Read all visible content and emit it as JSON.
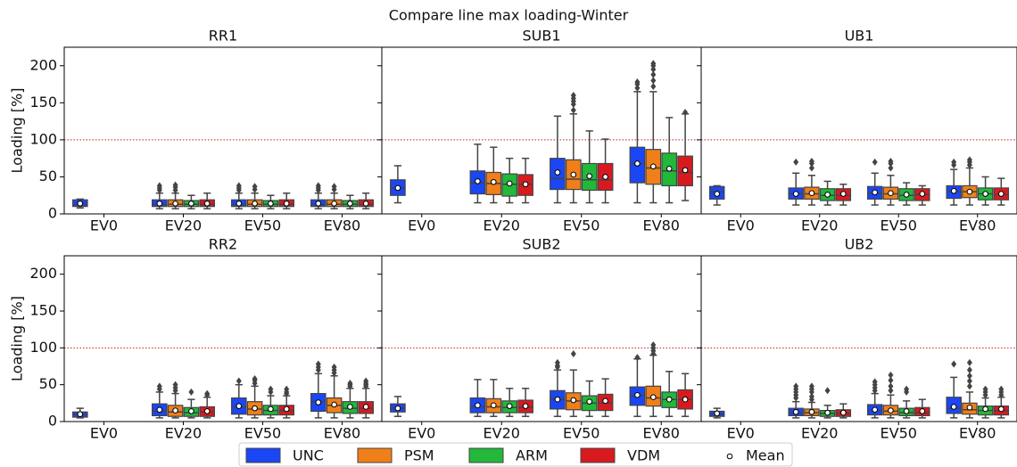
{
  "title": "Compare line max loading-Winter",
  "series": [
    {
      "name": "UNC",
      "color": "#1a46f5"
    },
    {
      "name": "PSM",
      "color": "#f07f1a"
    },
    {
      "name": "ARM",
      "color": "#22b83a"
    },
    {
      "name": "VDM",
      "color": "#d81a1f"
    }
  ],
  "mean_label": "Mean",
  "chart_data": [
    {
      "type": "box",
      "title": "RR1",
      "ylabel": "Loading [%]",
      "categories": [
        "EV0",
        "EV20",
        "EV50",
        "EV80"
      ],
      "ylim": [
        0,
        225
      ],
      "yticks": [
        0,
        50,
        100,
        150,
        200
      ],
      "hline": 100,
      "boxes": [
        [
          {
            "lo": 8,
            "q1": 10,
            "med": 13,
            "q3": 19,
            "hi": 20,
            "mean": 14
          },
          {
            "lo": 7,
            "q1": 10,
            "med": 13,
            "q3": 19,
            "hi": 28,
            "mean": 14,
            "out": [
              32,
              35,
              38
            ]
          },
          {
            "lo": 7,
            "q1": 10,
            "med": 13,
            "q3": 19,
            "hi": 28,
            "mean": 14,
            "out": [
              32,
              35,
              38
            ]
          },
          {
            "lo": 7,
            "q1": 10,
            "med": 13,
            "q3": 19,
            "hi": 28,
            "mean": 14,
            "out": [
              32,
              35,
              38
            ]
          }
        ],
        [
          null,
          {
            "lo": 7,
            "q1": 10,
            "med": 13,
            "q3": 19,
            "hi": 28,
            "mean": 14,
            "out": [
              32,
              36,
              39
            ]
          },
          {
            "lo": 7,
            "q1": 10,
            "med": 13,
            "q3": 19,
            "hi": 28,
            "mean": 14,
            "out": [
              33,
              37
            ]
          },
          {
            "lo": 7,
            "q1": 10,
            "med": 13,
            "q3": 19,
            "hi": 28,
            "mean": 14,
            "out": [
              33,
              37
            ]
          }
        ],
        [
          null,
          {
            "lo": 7,
            "q1": 10,
            "med": 13,
            "q3": 18,
            "hi": 25,
            "mean": 14
          },
          {
            "lo": 7,
            "q1": 10,
            "med": 13,
            "q3": 18,
            "hi": 25,
            "mean": 14
          },
          {
            "lo": 7,
            "q1": 10,
            "med": 13,
            "q3": 18,
            "hi": 25,
            "mean": 14
          }
        ],
        [
          null,
          {
            "lo": 7,
            "q1": 10,
            "med": 13,
            "q3": 19,
            "hi": 28,
            "mean": 14
          },
          {
            "lo": 7,
            "q1": 10,
            "med": 13,
            "q3": 19,
            "hi": 28,
            "mean": 14
          },
          {
            "lo": 7,
            "q1": 10,
            "med": 13,
            "q3": 19,
            "hi": 28,
            "mean": 14
          }
        ]
      ]
    },
    {
      "type": "box",
      "title": "SUB1",
      "categories": [
        "EV0",
        "EV20",
        "EV50",
        "EV80"
      ],
      "ylim": [
        0,
        225
      ],
      "yticks": [
        0,
        50,
        100,
        150,
        200
      ],
      "hline": 100,
      "boxes": [
        [
          {
            "lo": 15,
            "q1": 25,
            "med": 35,
            "q3": 46,
            "hi": 65,
            "mean": 35
          },
          {
            "lo": 15,
            "q1": 27,
            "med": 42,
            "q3": 58,
            "hi": 94,
            "mean": 44
          },
          {
            "lo": 15,
            "q1": 33,
            "med": 48,
            "q3": 75,
            "hi": 132,
            "mean": 56
          },
          {
            "lo": 15,
            "q1": 42,
            "med": 68,
            "q3": 90,
            "hi": 165,
            "mean": 68,
            "out": [
              170,
              175,
              178
            ]
          }
        ],
        [
          null,
          {
            "lo": 15,
            "q1": 26,
            "med": 41,
            "q3": 56,
            "hi": 90,
            "mean": 43
          },
          {
            "lo": 15,
            "q1": 33,
            "med": 47,
            "q3": 73,
            "hi": 135,
            "mean": 53,
            "out": [
              140,
              148,
              152,
              156,
              160
            ]
          },
          {
            "lo": 15,
            "q1": 40,
            "med": 62,
            "q3": 87,
            "hi": 165,
            "mean": 64,
            "out": [
              172,
              180,
              188,
              195,
              200,
              203
            ]
          }
        ],
        [
          null,
          {
            "lo": 15,
            "q1": 24,
            "med": 40,
            "q3": 54,
            "hi": 75,
            "mean": 41
          },
          {
            "lo": 15,
            "q1": 32,
            "med": 46,
            "q3": 68,
            "hi": 112,
            "mean": 51
          },
          {
            "lo": 15,
            "q1": 38,
            "med": 58,
            "q3": 82,
            "hi": 130,
            "mean": 61
          }
        ],
        [
          null,
          {
            "lo": 15,
            "q1": 25,
            "med": 40,
            "q3": 53,
            "hi": 75,
            "mean": 40
          },
          {
            "lo": 15,
            "q1": 32,
            "med": 46,
            "q3": 68,
            "hi": 101,
            "mean": 50
          },
          {
            "lo": 18,
            "q1": 38,
            "med": 56,
            "q3": 78,
            "hi": 135,
            "mean": 59,
            "out": [
              137
            ]
          }
        ]
      ]
    },
    {
      "type": "box",
      "title": "UB1",
      "categories": [
        "EV0",
        "EV20",
        "EV50",
        "EV80"
      ],
      "ylim": [
        0,
        225
      ],
      "yticks": [
        0,
        50,
        100,
        150,
        200
      ],
      "hline": 100,
      "boxes": [
        [
          {
            "lo": 12,
            "q1": 20,
            "med": 30,
            "q3": 37,
            "hi": 38,
            "mean": 27
          },
          {
            "lo": 12,
            "q1": 20,
            "med": 27,
            "q3": 35,
            "hi": 55,
            "mean": 27,
            "out": [
              70
            ]
          },
          {
            "lo": 12,
            "q1": 20,
            "med": 28,
            "q3": 37,
            "hi": 55,
            "mean": 29,
            "out": [
              70
            ]
          },
          {
            "lo": 12,
            "q1": 21,
            "med": 30,
            "q3": 38,
            "hi": 60,
            "mean": 31,
            "out": [
              66,
              70
            ]
          }
        ],
        [
          null,
          {
            "lo": 12,
            "q1": 20,
            "med": 27,
            "q3": 36,
            "hi": 52,
            "mean": 28,
            "out": [
              62,
              68,
              71
            ]
          },
          {
            "lo": 12,
            "q1": 20,
            "med": 27,
            "q3": 36,
            "hi": 52,
            "mean": 28,
            "out": [
              62,
              68,
              71
            ]
          },
          {
            "lo": 12,
            "q1": 22,
            "med": 30,
            "q3": 38,
            "hi": 62,
            "mean": 30,
            "out": [
              66,
              70,
              73
            ]
          }
        ],
        [
          null,
          {
            "lo": 12,
            "q1": 18,
            "med": 25,
            "q3": 34,
            "hi": 44,
            "mean": 26
          },
          {
            "lo": 12,
            "q1": 18,
            "med": 25,
            "q3": 34,
            "hi": 42,
            "mean": 26
          },
          {
            "lo": 12,
            "q1": 19,
            "med": 27,
            "q3": 35,
            "hi": 50,
            "mean": 27
          }
        ],
        [
          null,
          {
            "lo": 12,
            "q1": 18,
            "med": 25,
            "q3": 34,
            "hi": 40,
            "mean": 27
          },
          {
            "lo": 12,
            "q1": 18,
            "med": 26,
            "q3": 34,
            "hi": 38,
            "mean": 27
          },
          {
            "lo": 12,
            "q1": 19,
            "med": 26,
            "q3": 35,
            "hi": 48,
            "mean": 27
          }
        ]
      ]
    },
    {
      "type": "box",
      "title": "RR2",
      "ylabel": "Loading [%]",
      "categories": [
        "EV0",
        "EV20",
        "EV50",
        "EV80"
      ],
      "ylim": [
        0,
        225
      ],
      "yticks": [
        0,
        50,
        100,
        150,
        200
      ],
      "hline": 100,
      "boxes": [
        [
          {
            "lo": 5,
            "q1": 6,
            "med": 10,
            "q3": 13,
            "hi": 18,
            "mean": 10
          },
          {
            "lo": 5,
            "q1": 8,
            "med": 14,
            "q3": 24,
            "hi": 40,
            "mean": 16,
            "out": [
              44,
              48
            ]
          },
          {
            "lo": 5,
            "q1": 10,
            "med": 20,
            "q3": 32,
            "hi": 50,
            "mean": 21,
            "out": [
              55
            ]
          },
          {
            "lo": 5,
            "q1": 14,
            "med": 27,
            "q3": 38,
            "hi": 65,
            "mean": 26,
            "out": [
              70,
              74,
              78
            ]
          }
        ],
        [
          null,
          {
            "lo": 5,
            "q1": 7,
            "med": 13,
            "q3": 22,
            "hi": 38,
            "mean": 15,
            "out": [
              42,
              46,
              50
            ]
          },
          {
            "lo": 5,
            "q1": 9,
            "med": 17,
            "q3": 27,
            "hi": 48,
            "mean": 18,
            "out": [
              52,
              56,
              58
            ]
          },
          {
            "lo": 5,
            "q1": 12,
            "med": 22,
            "q3": 32,
            "hi": 62,
            "mean": 23,
            "out": [
              66,
              70,
              74
            ]
          }
        ],
        [
          null,
          {
            "lo": 5,
            "q1": 7,
            "med": 12,
            "q3": 19,
            "hi": 30,
            "mean": 14,
            "out": [
              40
            ]
          },
          {
            "lo": 5,
            "q1": 9,
            "med": 15,
            "q3": 22,
            "hi": 35,
            "mean": 17,
            "out": [
              40,
              44
            ]
          },
          {
            "lo": 5,
            "q1": 11,
            "med": 18,
            "q3": 27,
            "hi": 45,
            "mean": 20,
            "out": [
              48,
              50,
              52
            ]
          }
        ],
        [
          null,
          {
            "lo": 5,
            "q1": 7,
            "med": 13,
            "q3": 20,
            "hi": 33,
            "mean": 14,
            "out": [
              36,
              38
            ]
          },
          {
            "lo": 5,
            "q1": 9,
            "med": 15,
            "q3": 22,
            "hi": 35,
            "mean": 17,
            "out": [
              38,
              40,
              44
            ]
          },
          {
            "lo": 5,
            "q1": 11,
            "med": 18,
            "q3": 27,
            "hi": 45,
            "mean": 20,
            "out": [
              48,
              50,
              52,
              55
            ]
          }
        ]
      ]
    },
    {
      "type": "box",
      "title": "SUB2",
      "categories": [
        "EV0",
        "EV20",
        "EV50",
        "EV80"
      ],
      "ylim": [
        0,
        225
      ],
      "yticks": [
        0,
        50,
        100,
        150,
        200
      ],
      "hline": 100,
      "boxes": [
        [
          {
            "lo": 7,
            "q1": 13,
            "med": 18,
            "q3": 24,
            "hi": 34,
            "mean": 18
          },
          {
            "lo": 7,
            "q1": 12,
            "med": 20,
            "q3": 32,
            "hi": 57,
            "mean": 22
          },
          {
            "lo": 7,
            "q1": 17,
            "med": 30,
            "q3": 42,
            "hi": 70,
            "mean": 30,
            "out": [
              74,
              76,
              80
            ]
          },
          {
            "lo": 7,
            "q1": 22,
            "med": 35,
            "q3": 47,
            "hi": 85,
            "mean": 36,
            "out": [
              87
            ]
          }
        ],
        [
          null,
          {
            "lo": 7,
            "q1": 12,
            "med": 20,
            "q3": 31,
            "hi": 57,
            "mean": 22
          },
          {
            "lo": 7,
            "q1": 16,
            "med": 28,
            "q3": 39,
            "hi": 70,
            "mean": 29,
            "out": [
              92
            ]
          },
          {
            "lo": 7,
            "q1": 21,
            "med": 32,
            "q3": 48,
            "hi": 90,
            "mean": 33,
            "out": [
              92,
              96,
              100,
              104
            ]
          }
        ],
        [
          null,
          {
            "lo": 7,
            "q1": 12,
            "med": 19,
            "q3": 28,
            "hi": 45,
            "mean": 21
          },
          {
            "lo": 7,
            "q1": 15,
            "med": 25,
            "q3": 35,
            "hi": 55,
            "mean": 27
          },
          {
            "lo": 7,
            "q1": 19,
            "med": 30,
            "q3": 40,
            "hi": 68,
            "mean": 30
          }
        ],
        [
          null,
          {
            "lo": 7,
            "q1": 12,
            "med": 19,
            "q3": 29,
            "hi": 45,
            "mean": 21
          },
          {
            "lo": 7,
            "q1": 15,
            "med": 25,
            "q3": 37,
            "hi": 58,
            "mean": 28
          },
          {
            "lo": 7,
            "q1": 17,
            "med": 30,
            "q3": 43,
            "hi": 65,
            "mean": 30
          }
        ]
      ]
    },
    {
      "type": "box",
      "title": "UB2",
      "categories": [
        "EV0",
        "EV20",
        "EV50",
        "EV80"
      ],
      "ylim": [
        0,
        225
      ],
      "yticks": [
        0,
        50,
        100,
        150,
        200
      ],
      "hline": 100,
      "boxes": [
        [
          {
            "lo": 5,
            "q1": 7,
            "med": 10,
            "q3": 14,
            "hi": 18,
            "mean": 11
          },
          {
            "lo": 5,
            "q1": 8,
            "med": 12,
            "q3": 18,
            "hi": 27,
            "mean": 13,
            "out": [
              32,
              36,
              40,
              44,
              48
            ]
          },
          {
            "lo": 5,
            "q1": 9,
            "med": 15,
            "q3": 23,
            "hi": 38,
            "mean": 16,
            "out": [
              42,
              46,
              50,
              54
            ]
          },
          {
            "lo": 5,
            "q1": 11,
            "med": 18,
            "q3": 33,
            "hi": 60,
            "mean": 20,
            "out": [
              78
            ]
          }
        ],
        [
          null,
          {
            "lo": 5,
            "q1": 8,
            "med": 12,
            "q3": 17,
            "hi": 26,
            "mean": 13,
            "out": [
              30,
              34,
              40,
              44,
              48
            ]
          },
          {
            "lo": 5,
            "q1": 9,
            "med": 14,
            "q3": 22,
            "hi": 36,
            "mean": 15,
            "out": [
              42,
              48,
              56,
              63
            ]
          },
          {
            "lo": 5,
            "q1": 10,
            "med": 16,
            "q3": 25,
            "hi": 40,
            "mean": 19,
            "out": [
              48,
              55,
              62,
              70,
              80
            ]
          }
        ],
        [
          null,
          {
            "lo": 5,
            "q1": 7,
            "med": 11,
            "q3": 15,
            "hi": 22,
            "mean": 12,
            "out": [
              42
            ]
          },
          {
            "lo": 5,
            "q1": 8,
            "med": 12,
            "q3": 18,
            "hi": 28,
            "mean": 14,
            "out": [
              40,
              44
            ]
          },
          {
            "lo": 5,
            "q1": 9,
            "med": 15,
            "q3": 21,
            "hi": 32,
            "mean": 17,
            "out": [
              36,
              40,
              44
            ]
          }
        ],
        [
          null,
          {
            "lo": 5,
            "q1": 7,
            "med": 11,
            "q3": 16,
            "hi": 24,
            "mean": 12
          },
          {
            "lo": 5,
            "q1": 8,
            "med": 12,
            "q3": 19,
            "hi": 30,
            "mean": 14
          },
          {
            "lo": 5,
            "q1": 9,
            "med": 15,
            "q3": 21,
            "hi": 33,
            "mean": 17,
            "out": [
              36,
              40,
              44
            ]
          }
        ]
      ]
    }
  ]
}
